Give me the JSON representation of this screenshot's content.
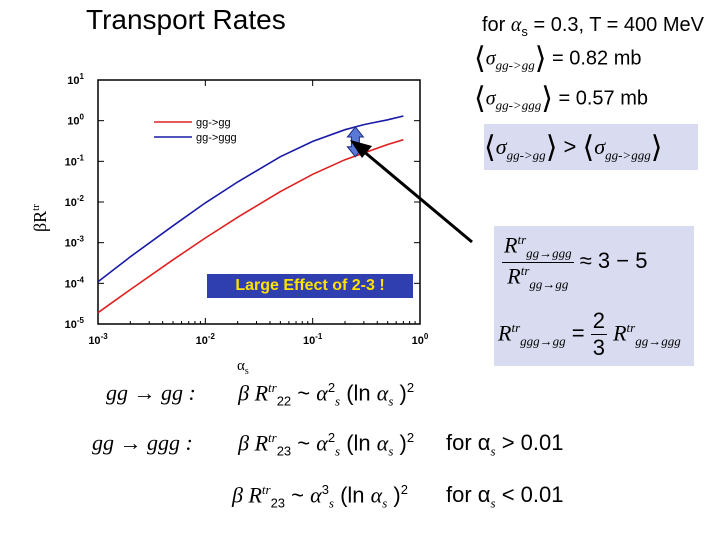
{
  "title": "Transport Rates",
  "params": {
    "line1_pre": "for ",
    "line1_alpha": "α",
    "line1_sub": "s",
    "line1_post": " = 0.3, T = 400 MeV",
    "sigma1_sub": "gg->gg",
    "sigma1_value": "= 0.82 mb",
    "sigma2_sub": "gg->ggg",
    "sigma2_value": "= 0.57 mb"
  },
  "inequality": {
    "lhs_sub": "gg->gg",
    "op": ">",
    "rhs_sub": "gg->ggg"
  },
  "ratio_box": {
    "num_sup": "tr",
    "num_sub": "gg→ggg",
    "den_sup": "tr",
    "den_sub": "gg→gg",
    "approx": "≈ 3 − 5",
    "eq2_lhs_sub": "ggg→gg",
    "eq2_frac_num": "2",
    "eq2_frac_den": "3",
    "eq2_rhs_sub": "gg→ggg"
  },
  "callout": "Large Effect of 2-3 !",
  "equations": [
    {
      "process": "gg → gg :",
      "rsub": "22",
      "power": "2",
      "condition": ""
    },
    {
      "process": "gg → ggg :",
      "rsub": "23",
      "power": "2",
      "condition": "for α",
      "cond_value": "> 0.01"
    },
    {
      "process": "",
      "rsub": "23",
      "power": "3",
      "condition": "for α",
      "cond_value": "< 0.01"
    }
  ],
  "chart_data": {
    "type": "line",
    "xscale": "log",
    "yscale": "log",
    "xlabel": "α_s",
    "ylabel": "βR^tr",
    "xlim": [
      0.001,
      1
    ],
    "ylim": [
      1e-05,
      10
    ],
    "xticks": [
      "10^-3",
      "10^-2",
      "10^-1",
      "10^0"
    ],
    "yticks": [
      "10^-5",
      "10^-4",
      "10^-3",
      "10^-2",
      "10^-1",
      "10^0",
      "10^1"
    ],
    "legend_position": "top-left",
    "series": [
      {
        "name": "gg->gg",
        "color": "#e02020",
        "x": [
          0.001,
          0.002,
          0.005,
          0.01,
          0.02,
          0.05,
          0.1,
          0.2,
          0.3,
          0.5,
          0.7
        ],
        "y": [
          1.9e-05,
          7e-05,
          0.00038,
          0.0013,
          0.0042,
          0.018,
          0.048,
          0.11,
          0.16,
          0.26,
          0.34
        ]
      },
      {
        "name": "gg->ggg",
        "color": "#1a1aa8",
        "x": [
          0.001,
          0.002,
          0.005,
          0.01,
          0.02,
          0.05,
          0.1,
          0.2,
          0.3,
          0.5,
          0.7
        ],
        "y": [
          0.00011,
          0.00045,
          0.0026,
          0.0095,
          0.031,
          0.13,
          0.31,
          0.6,
          0.8,
          1.05,
          1.3
        ]
      }
    ],
    "annotation": {
      "x": 0.25,
      "y_low": 0.13,
      "y_high": 0.7,
      "arrow_color": "#5a78d6"
    }
  }
}
